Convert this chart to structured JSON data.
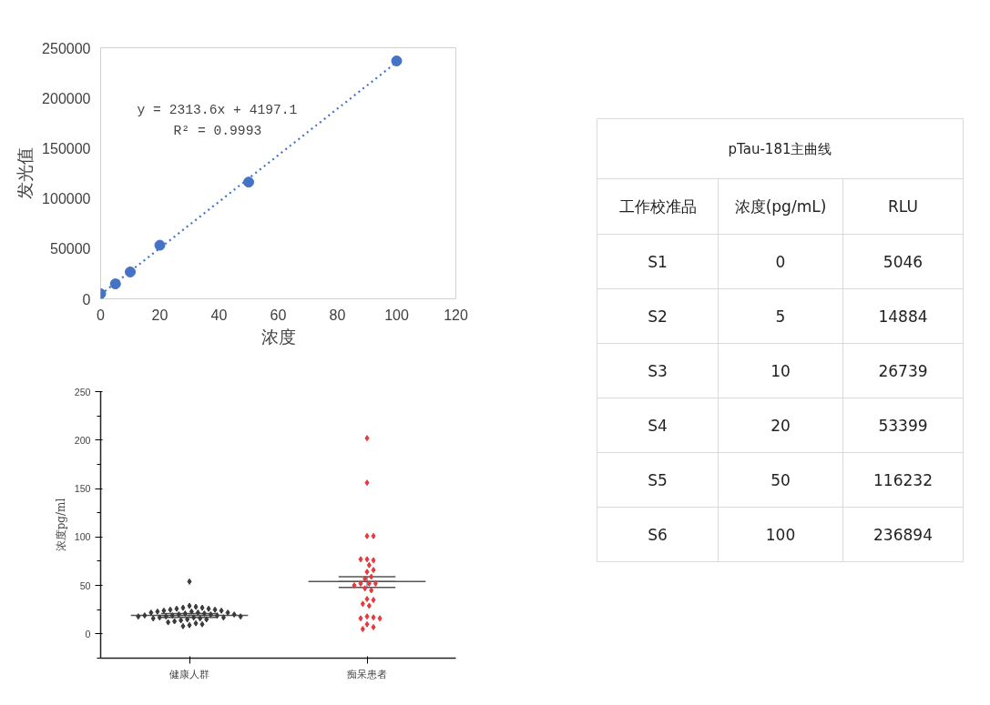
{
  "chart_data": [
    {
      "type": "scatter",
      "xlabel": "浓度",
      "ylabel": "发光值",
      "xlim": [
        0,
        120
      ],
      "xticks": [
        0,
        20,
        40,
        60,
        80,
        100,
        120
      ],
      "ylim": [
        0,
        250000
      ],
      "yticks": [
        0,
        50000,
        100000,
        150000,
        200000,
        250000
      ],
      "grid": false,
      "marker": "circle",
      "x": [
        0,
        5,
        10,
        20,
        50,
        100
      ],
      "series": [
        {
          "color": "#4472c4",
          "values": [
            5046,
            14884,
            26739,
            53399,
            116232,
            236894
          ]
        },
        {
          "type": "line",
          "line_style": "dotted",
          "marker": "none",
          "color": "#4472c4",
          "x": [
            0,
            100
          ],
          "values": [
            4197.1,
            235557.1
          ]
        }
      ],
      "annotations": [
        "y = 2313.6x + 4197.1",
        "R² = 0.9993"
      ]
    },
    {
      "type": "scatter",
      "categories": [
        "健康人群",
        "痴呆患者"
      ],
      "ylabel": "浓度pg/ml",
      "ylim": [
        -25,
        250
      ],
      "yticks": [
        0,
        50,
        100,
        150,
        200,
        250
      ],
      "grid": false,
      "marker": "diamond",
      "series": [
        {
          "color": "#3a3a3a",
          "x": [
            "健康人群",
            "健康人群",
            "健康人群",
            "健康人群",
            "健康人群",
            "健康人群",
            "健康人群",
            "健康人群",
            "健康人群",
            "健康人群",
            "健康人群",
            "健康人群",
            "健康人群",
            "健康人群",
            "健康人群",
            "健康人群",
            "健康人群",
            "健康人群",
            "健康人群",
            "健康人群",
            "健康人群",
            "健康人群",
            "健康人群",
            "健康人群",
            "健康人群",
            "健康人群",
            "健康人群",
            "健康人群",
            "健康人群",
            "健康人群",
            "健康人群",
            "健康人群",
            "健康人群",
            "健康人群",
            "健康人群",
            "健康人群",
            "健康人群",
            "健康人群",
            "健康人群",
            "健康人群",
            "健康人群"
          ],
          "values": [
            54,
            29,
            28,
            27,
            27,
            26,
            26,
            25,
            25,
            24,
            24,
            23,
            23,
            22,
            22,
            22,
            21,
            21,
            20,
            20,
            20,
            19,
            19,
            19,
            18,
            18,
            18,
            17,
            17,
            17,
            16,
            16,
            15,
            15,
            14,
            13,
            12,
            11,
            10,
            9,
            8
          ]
        },
        {
          "color": "#e8383d",
          "x": [
            "痴呆患者",
            "痴呆患者",
            "痴呆患者",
            "痴呆患者",
            "痴呆患者",
            "痴呆患者",
            "痴呆患者",
            "痴呆患者",
            "痴呆患者",
            "痴呆患者",
            "痴呆患者",
            "痴呆患者",
            "痴呆患者",
            "痴呆患者",
            "痴呆患者",
            "痴呆患者",
            "痴呆患者",
            "痴呆患者",
            "痴呆患者",
            "痴呆患者",
            "痴呆患者",
            "痴呆患者",
            "痴呆患者",
            "痴呆患者",
            "痴呆患者",
            "痴呆患者",
            "痴呆患者",
            "痴呆患者",
            "痴呆患者"
          ],
          "values": [
            202,
            156,
            101,
            101,
            77,
            76,
            77,
            71,
            64,
            66,
            59,
            57,
            52,
            52,
            52,
            50,
            47,
            45,
            36,
            35,
            31,
            29,
            18,
            17,
            16,
            16,
            10,
            7,
            5
          ]
        },
        {
          "type": "box",
          "color": "#555555",
          "boxes": [
            {
              "low": 17,
              "q1": 19,
              "median": 19,
              "q3": 19,
              "high": 21
            },
            {
              "low": 48,
              "q1": 54,
              "median": 54,
              "q3": 54,
              "high": 59
            }
          ]
        }
      ]
    },
    {
      "type": "other",
      "data_labels": true,
      "title": "pTau-181主曲线",
      "xlabel": "工作校准品",
      "categories": [
        "S1",
        "S2",
        "S3",
        "S4",
        "S5",
        "S6"
      ],
      "series": [
        {
          "name": "浓度(pg/mL)",
          "values": [
            0,
            5,
            10,
            20,
            50,
            100
          ]
        },
        {
          "name": "RLU",
          "values": [
            5046,
            14884,
            26739,
            53399,
            116232,
            236894
          ]
        }
      ]
    }
  ]
}
